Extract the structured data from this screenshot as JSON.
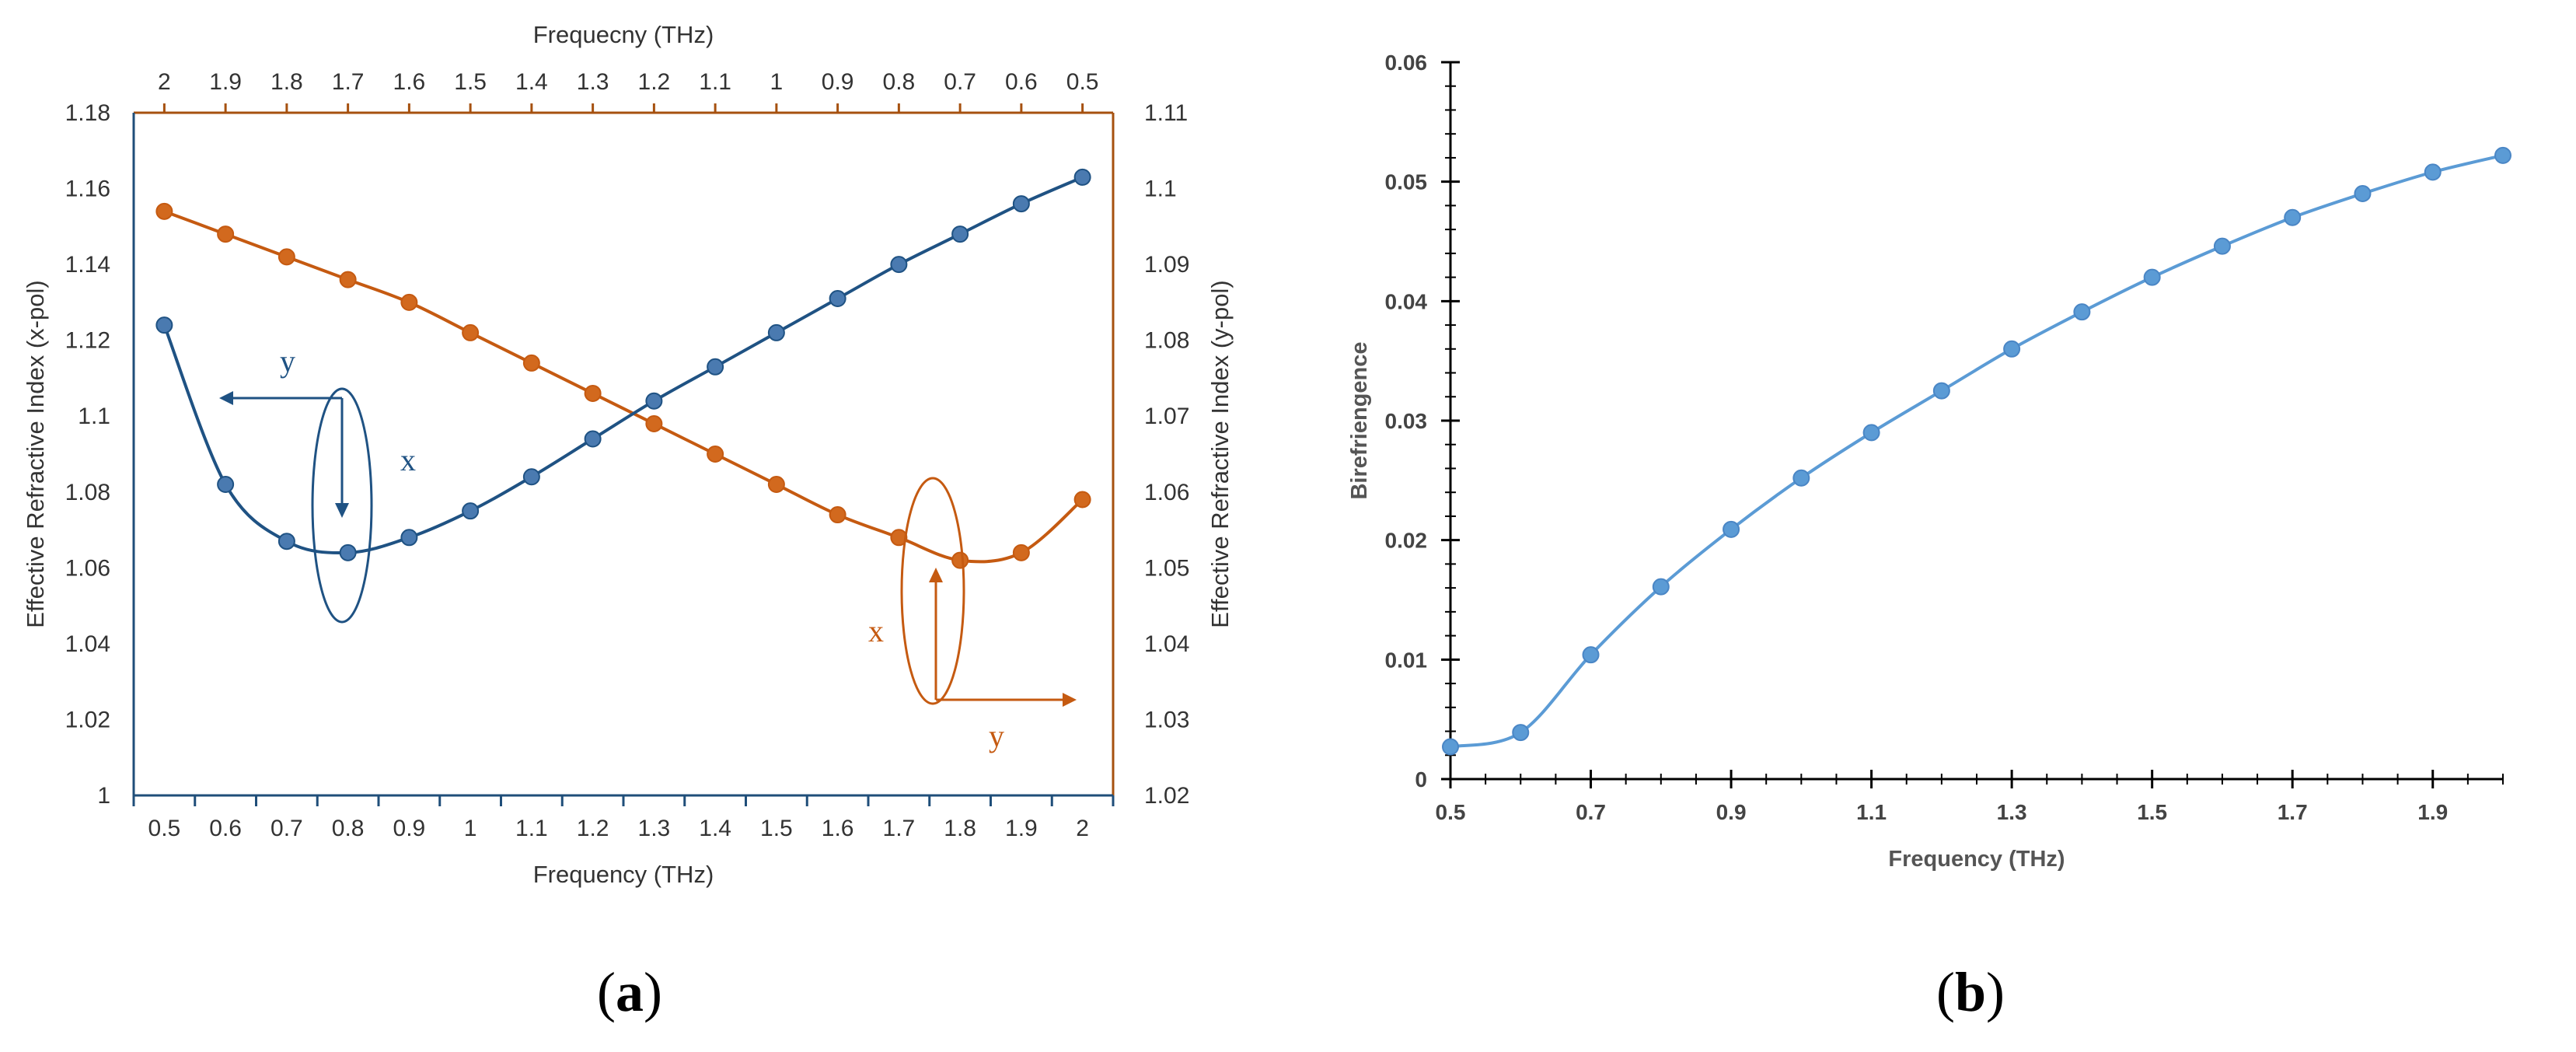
{
  "panels": [
    {
      "label_open": "(",
      "label_letter": "a",
      "label_close": ")"
    },
    {
      "label_open": "(",
      "label_letter": "b",
      "label_close": ")"
    }
  ],
  "colors": {
    "x_pol": "#1f5283",
    "y_pol": "#c55a11",
    "birefringence": "#5b9bd5",
    "axis_dark": "#1f4e79",
    "axis_orange": "#a6510f"
  },
  "chart_data": [
    {
      "type": "line",
      "xlabel": "Frequency (THz)",
      "x2label": "Frequecny (THz)",
      "ylabel": "Effective Refractive Index (x-pol)",
      "y2label": "Effective Refractive Index (y-pol)",
      "xlim": [
        0.5,
        2.0
      ],
      "ylim": [
        1.0,
        1.18
      ],
      "y2lim": [
        1.02,
        1.11
      ],
      "x_ticks": [
        "0.5",
        "0.6",
        "0.7",
        "0.8",
        "0.9",
        "1",
        "1.1",
        "1.2",
        "1.3",
        "1.4",
        "1.5",
        "1.6",
        "1.7",
        "1.8",
        "1.9",
        "2"
      ],
      "x2_ticks": [
        "2",
        "1.9",
        "1.8",
        "1.7",
        "1.6",
        "1.5",
        "1.4",
        "1.3",
        "1.2",
        "1.1",
        "1",
        "0.9",
        "0.8",
        "0.7",
        "0.6",
        "0.5"
      ],
      "y_ticks": [
        "1",
        "1.02",
        "1.04",
        "1.06",
        "1.08",
        "1.1",
        "1.12",
        "1.14",
        "1.16",
        "1.18"
      ],
      "y2_ticks": [
        "1.02",
        "1.03",
        "1.04",
        "1.05",
        "1.06",
        "1.07",
        "1.08",
        "1.09",
        "1.1",
        "1.11"
      ],
      "grid": false,
      "series": [
        {
          "axis": "left",
          "x": [
            0.5,
            0.6,
            0.7,
            0.8,
            0.9,
            1.0,
            1.1,
            1.2,
            1.3,
            1.4,
            1.5,
            1.6,
            1.7,
            1.8,
            1.9,
            2.0
          ],
          "values": [
            1.124,
            1.082,
            1.067,
            1.064,
            1.068,
            1.075,
            1.084,
            1.094,
            1.104,
            1.113,
            1.122,
            1.131,
            1.14,
            1.148,
            1.156,
            1.163
          ]
        },
        {
          "axis": "right",
          "x": [
            0.5,
            0.6,
            0.7,
            0.8,
            0.9,
            1.0,
            1.1,
            1.2,
            1.3,
            1.4,
            1.5,
            1.6,
            1.7,
            1.8,
            1.9,
            2.0
          ],
          "values": [
            1.097,
            1.094,
            1.091,
            1.088,
            1.085,
            1.081,
            1.077,
            1.073,
            1.069,
            1.065,
            1.061,
            1.057,
            1.054,
            1.051,
            1.052,
            1.059
          ]
        }
      ],
      "annotations": [
        {
          "text": "y",
          "color": "#1f5283"
        },
        {
          "text": "x",
          "color": "#1f5283"
        },
        {
          "text": "x",
          "color": "#c55a11"
        },
        {
          "text": "y",
          "color": "#c55a11"
        }
      ]
    },
    {
      "type": "line",
      "xlabel": "Frequency (THz)",
      "ylabel": "Birefriengence",
      "xlim": [
        0.5,
        2.0
      ],
      "ylim": [
        0,
        0.06
      ],
      "x_ticks": [
        "0.5",
        "0.7",
        "0.9",
        "1.1",
        "1.3",
        "1.5",
        "1.7",
        "1.9"
      ],
      "y_ticks": [
        "0",
        "0.01",
        "0.02",
        "0.03",
        "0.04",
        "0.05",
        "0.06"
      ],
      "grid": false,
      "series": [
        {
          "x": [
            0.5,
            0.6,
            0.7,
            0.8,
            0.9,
            1.0,
            1.1,
            1.2,
            1.3,
            1.4,
            1.5,
            1.6,
            1.7,
            1.8,
            1.9,
            2.0
          ],
          "values": [
            0.0027,
            0.0039,
            0.0104,
            0.0161,
            0.0209,
            0.0252,
            0.029,
            0.0325,
            0.036,
            0.0391,
            0.042,
            0.0446,
            0.047,
            0.049,
            0.0508,
            0.0522
          ]
        }
      ]
    }
  ]
}
